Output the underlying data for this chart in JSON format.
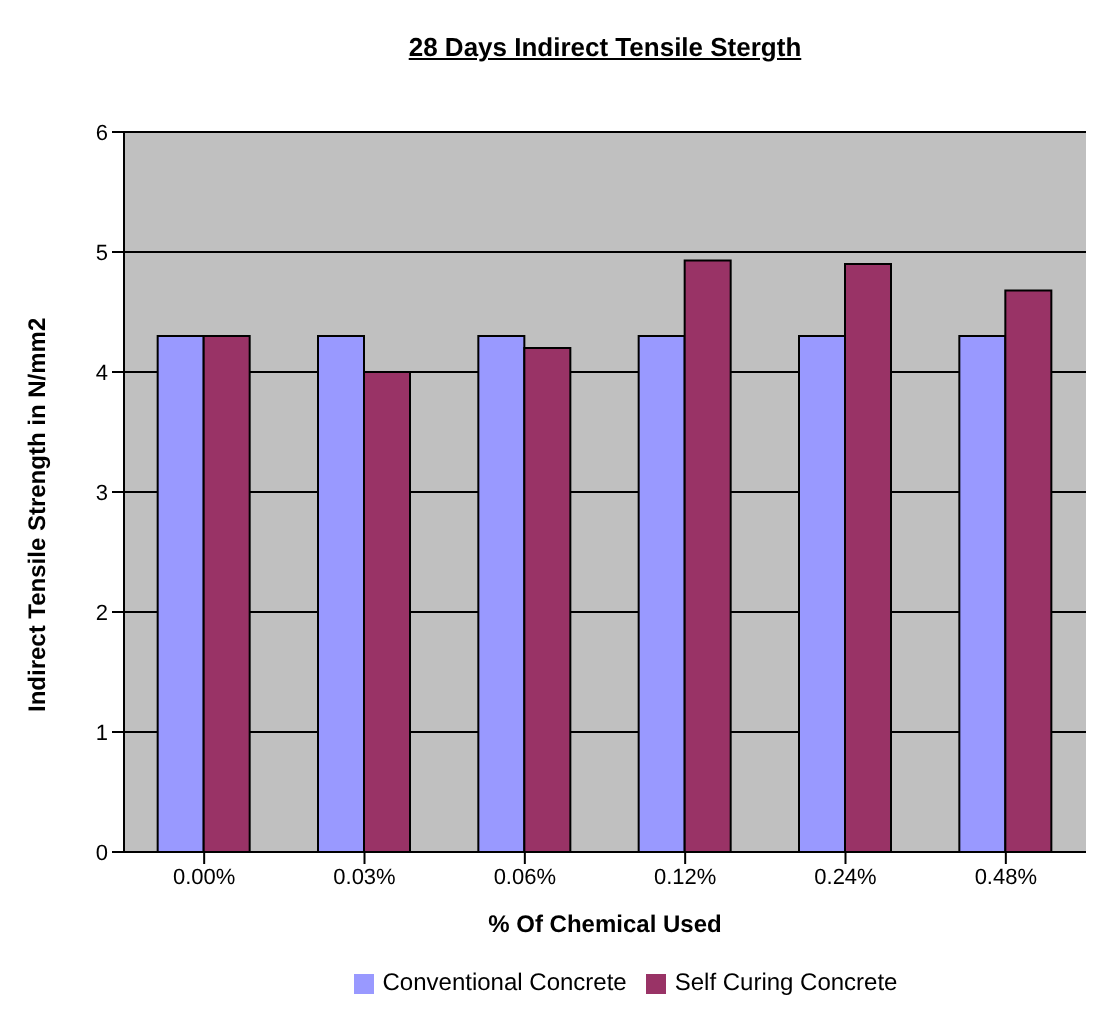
{
  "chart_data": {
    "type": "bar",
    "title": "28 Days Indirect Tensile Stergth",
    "xlabel": "% Of Chemical Used",
    "ylabel": "Indirect Tensile Strength in N/mm2",
    "categories": [
      "0.00%",
      "0.03%",
      "0.06%",
      "0.12%",
      "0.24%",
      "0.48%"
    ],
    "series": [
      {
        "name": "Conventional Concrete",
        "color": "#9999ff",
        "values": [
          4.3,
          4.3,
          4.3,
          4.3,
          4.3,
          4.3
        ]
      },
      {
        "name": "Self Curing Concrete",
        "color": "#993366",
        "values": [
          4.3,
          4.0,
          4.2,
          4.93,
          4.9,
          4.68
        ]
      }
    ],
    "ylim": [
      0,
      6
    ],
    "yticks": [
      0,
      1,
      2,
      3,
      4,
      5,
      6
    ],
    "grid": "y",
    "legend": "bottom"
  }
}
